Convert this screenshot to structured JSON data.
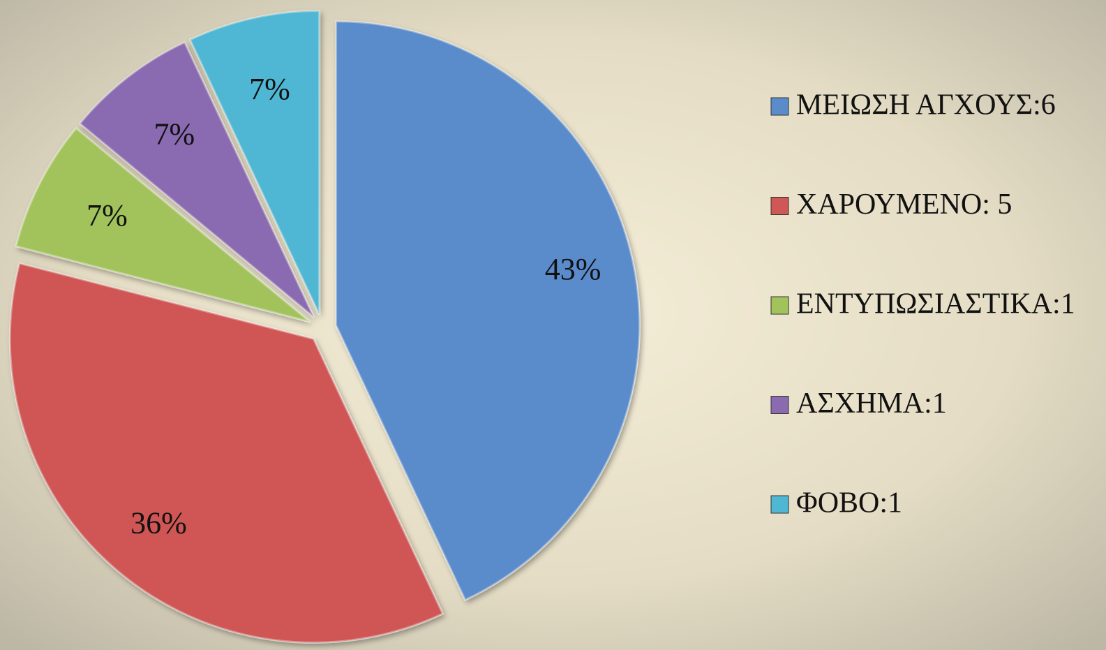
{
  "chart_data": {
    "type": "pie",
    "categories": [
      "ΜΕΙΩΣΗ ΑΓΧΟΥΣ:6",
      "ΧΑΡΟΥΜΕΝΟ: 5",
      "ΕΝΤΥΠΩΣΙΑΣΤΙΚΑ:1",
      "ΑΣΧΗΜΑ:1",
      "ΦΟΒΟ:1"
    ],
    "values": [
      43,
      36,
      7,
      7,
      7
    ],
    "value_labels": [
      "43%",
      "36%",
      "7%",
      "7%",
      "7%"
    ],
    "colors": [
      "#5a8bcb",
      "#cf5755",
      "#a2c35b",
      "#8a6bb0",
      "#4fb6d3"
    ],
    "legend": "right"
  }
}
